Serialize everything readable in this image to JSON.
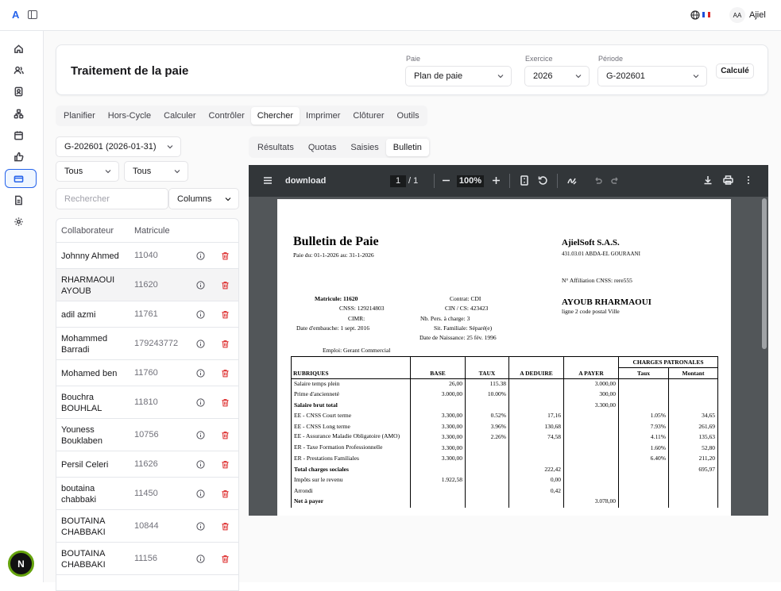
{
  "app": {
    "logo": "A",
    "user_initials": "AA",
    "user_name": "Ajiel",
    "flag": "FR",
    "avatar_letter": "N"
  },
  "sidebar_icons": [
    "home-icon",
    "users-icon",
    "contact-icon",
    "org-icon",
    "calendar-icon",
    "thumbs-up-icon",
    "wallet-icon",
    "document-icon",
    "settings-icon"
  ],
  "header": {
    "title": "Traitement de la paie",
    "paie_label": "Paie",
    "paie_value": "Plan de paie",
    "exercice_label": "Exercice",
    "exercice_value": "2026",
    "periode_label": "Période",
    "periode_value": "G-202601",
    "status": "Calculé"
  },
  "tabs": [
    "Planifier",
    "Hors-Cycle",
    "Calculer",
    "Contrôler",
    "Chercher",
    "Imprimer",
    "Clôturer",
    "Outils"
  ],
  "active_tab": "Chercher",
  "left": {
    "period_select": "G-202601 (2026-01-31)",
    "filter1": "Tous",
    "filter2": "Tous",
    "search_placeholder": "Rechercher",
    "columns_label": "Columns",
    "col_collab": "Collaborateur",
    "col_mat": "Matricule",
    "rows": [
      {
        "name": "Johnny Ahmed",
        "mat": "11040"
      },
      {
        "name": "RHARMAOUI AYOUB",
        "mat": "11620"
      },
      {
        "name": "adil azmi",
        "mat": "11761"
      },
      {
        "name": "Mohammed Barradi",
        "mat": "179243772"
      },
      {
        "name": "Mohamed ben",
        "mat": "11760"
      },
      {
        "name": "Bouchra BOUHLAL",
        "mat": "11810"
      },
      {
        "name": "Youness Bouklaben",
        "mat": "10756"
      },
      {
        "name": "Persil Celeri",
        "mat": "11626"
      },
      {
        "name": "boutaina chabbaki",
        "mat": "11450"
      },
      {
        "name": "BOUTAINA CHABBAKI",
        "mat": "10844"
      },
      {
        "name": "BOUTAINA CHABBAKI",
        "mat": "11156"
      }
    ]
  },
  "subtabs": [
    "Résultats",
    "Quotas",
    "Saisies",
    "Bulletin"
  ],
  "active_subtab": "Bulletin",
  "viewer": {
    "filename": "download",
    "page": "1",
    "pages": "/  1",
    "zoom": "100%"
  },
  "payslip": {
    "title": "Bulletin de Paie",
    "period": "Paie du: 01-1-2026 au: 31-1-2026",
    "company": "AjielSoft S.A.S.",
    "company_addr": "431.03.01 ABDA-EL GOURAANI",
    "affiliation": "N° Affiliation CNSS: rere555",
    "employee_name": "AYOUB RHARMAOUI",
    "employee_addr": "ligne 2 code postal Ville",
    "matricule": "Matricule: 11620",
    "cnss": "CNSS: 129214803",
    "cimr": "CIMR:",
    "embauche": "Date d'embauche: 1 sept. 2016",
    "contrat": "Contrat: CDI",
    "cin": "CIN / CS: 423423",
    "pers_charge": "Nb. Pers. à charge: 3",
    "sit_fam": "Sit. Familiale: Séparé(e)",
    "naissance": "Date de Naissance: 25 fév. 1996",
    "emploi": "Emploi: Gerant Commercial",
    "headers": {
      "rubriques": "RUBRIQUES",
      "base": "BASE",
      "taux": "TAUX",
      "deduire": "A DEDUIRE",
      "payer": "A PAYER",
      "charges": "CHARGES PATRONALES",
      "ctaux": "Taux",
      "cmontant": "Montant"
    },
    "lines": [
      {
        "label": "Salaire temps plein",
        "base": "26,00",
        "taux": "115.38",
        "ded": "",
        "pay": "3.000,00",
        "ctaux": "",
        "cmont": "",
        "bold": false
      },
      {
        "label": "Prime d'ancienneté",
        "base": "3.000,00",
        "taux": "10.00%",
        "ded": "",
        "pay": "300,00",
        "ctaux": "",
        "cmont": "",
        "bold": false
      },
      {
        "label": "Salaire brut total",
        "base": "",
        "taux": "",
        "ded": "",
        "pay": "3.300,00",
        "ctaux": "",
        "cmont": "",
        "bold": true
      },
      {
        "label": "EE - CNSS Court terme",
        "base": "3.300,00",
        "taux": "0.52%",
        "ded": "17,16",
        "pay": "",
        "ctaux": "1.05%",
        "cmont": "34,65",
        "bold": false
      },
      {
        "label": "EE - CNSS Long terme",
        "base": "3.300,00",
        "taux": "3.96%",
        "ded": "130,68",
        "pay": "",
        "ctaux": "7.93%",
        "cmont": "261,69",
        "bold": false
      },
      {
        "label": "EE - Assurance Maladie Obligatoire (AMO)",
        "base": "3.300,00",
        "taux": "2.26%",
        "ded": "74,58",
        "pay": "",
        "ctaux": "4.11%",
        "cmont": "135,63",
        "bold": false
      },
      {
        "label": "ER - Taxe Formation Professionnelle",
        "base": "3.300,00",
        "taux": "",
        "ded": "",
        "pay": "",
        "ctaux": "1.60%",
        "cmont": "52,80",
        "bold": false
      },
      {
        "label": "ER - Prestations Familiales",
        "base": "3.300,00",
        "taux": "",
        "ded": "",
        "pay": "",
        "ctaux": "6.40%",
        "cmont": "211,20",
        "bold": false
      },
      {
        "label": "Total charges sociales",
        "base": "",
        "taux": "",
        "ded": "222,42",
        "pay": "",
        "ctaux": "",
        "cmont": "695,97",
        "bold": true
      },
      {
        "label": "Impôts sur le revenu",
        "base": "1.922,58",
        "taux": "",
        "ded": "0,00",
        "pay": "",
        "ctaux": "",
        "cmont": "",
        "bold": false
      },
      {
        "label": "Arrondi",
        "base": "",
        "taux": "",
        "ded": "0,42",
        "pay": "",
        "ctaux": "",
        "cmont": "",
        "bold": false
      },
      {
        "label": "Net à payer",
        "base": "",
        "taux": "",
        "ded": "",
        "pay": "3.078,00",
        "ctaux": "",
        "cmont": "",
        "bold": true
      }
    ]
  }
}
